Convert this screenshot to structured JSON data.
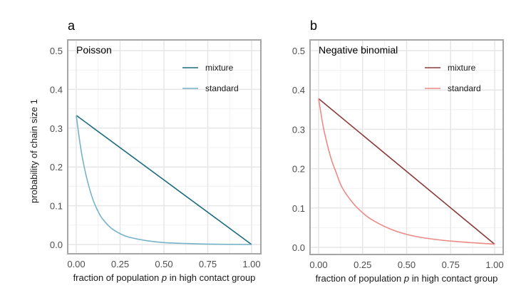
{
  "chart_data": [
    {
      "type": "line",
      "panel_tag": "a",
      "title": "Poisson",
      "xlabel_pre": "fraction of population ",
      "xlabel_var": "p",
      "xlabel_post": " in high contact group",
      "ylabel": "probability of chain size 1",
      "xlim": [
        0,
        1
      ],
      "ylim": [
        0,
        0.5
      ],
      "xticks": [
        "0.00",
        "0.25",
        "0.50",
        "0.75",
        "1.00"
      ],
      "yticks": [
        "0.0",
        "0.1",
        "0.2",
        "0.3",
        "0.4",
        "0.5"
      ],
      "grid": true,
      "legend_position": "top-right",
      "series": [
        {
          "name": "mixture",
          "color": "#1a6b7d",
          "x": [
            0,
            1
          ],
          "y": [
            0.333,
            0.0
          ]
        },
        {
          "name": "standard",
          "color": "#76b3c9",
          "x": [
            0,
            0.025,
            0.05,
            0.075,
            0.1,
            0.125,
            0.15,
            0.2,
            0.25,
            0.3,
            0.4,
            0.5,
            0.6,
            0.75,
            1.0
          ],
          "y": [
            0.333,
            0.25,
            0.19,
            0.145,
            0.11,
            0.085,
            0.066,
            0.042,
            0.028,
            0.019,
            0.01,
            0.005,
            0.003,
            0.001,
            0.0
          ]
        }
      ]
    },
    {
      "type": "line",
      "panel_tag": "b",
      "title": "Negative binomial",
      "xlabel_pre": "fraction of population ",
      "xlabel_var": "p",
      "xlabel_post": " in high contact group",
      "ylabel": "",
      "xlim": [
        0,
        1
      ],
      "ylim": [
        0,
        0.5
      ],
      "xticks": [
        "0.00",
        "0.25",
        "0.50",
        "0.75",
        "1.00"
      ],
      "yticks": [
        "0.0",
        "0.1",
        "0.2",
        "0.3",
        "0.4",
        "0.5"
      ],
      "grid": true,
      "legend_position": "top-right",
      "series": [
        {
          "name": "mixture",
          "color": "#8b3a3a",
          "x": [
            0,
            1
          ],
          "y": [
            0.378,
            0.008
          ]
        },
        {
          "name": "standard",
          "color": "#ec8a86",
          "x": [
            0,
            0.025,
            0.05,
            0.075,
            0.1,
            0.125,
            0.15,
            0.2,
            0.25,
            0.3,
            0.4,
            0.5,
            0.6,
            0.75,
            1.0
          ],
          "y": [
            0.378,
            0.31,
            0.26,
            0.22,
            0.19,
            0.16,
            0.14,
            0.11,
            0.088,
            0.071,
            0.048,
            0.033,
            0.024,
            0.016,
            0.008
          ]
        }
      ]
    }
  ]
}
